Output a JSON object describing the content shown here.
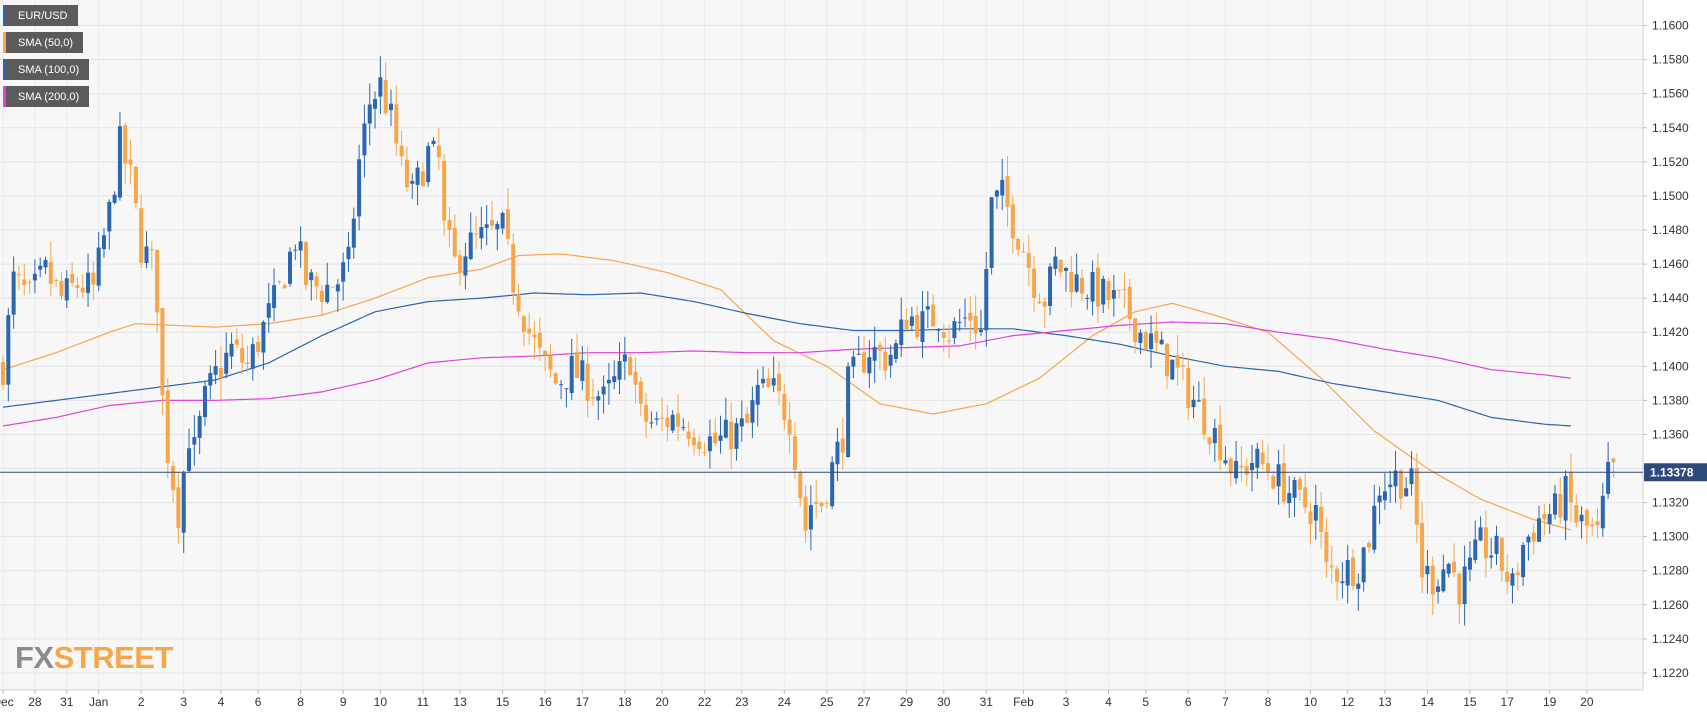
{
  "chart_data": {
    "type": "candlestick",
    "symbol": "EUR/USD",
    "ylim": [
      1.121,
      1.1615
    ],
    "y_ticks": [
      "1.1600",
      "1.1580",
      "1.1560",
      "1.1540",
      "1.1520",
      "1.1500",
      "1.1480",
      "1.1460",
      "1.1440",
      "1.1420",
      "1.1400",
      "1.1380",
      "1.1360",
      "1.1340",
      "1.1320",
      "1.1300",
      "1.1280",
      "1.1260",
      "1.1240",
      "1.1220"
    ],
    "x_ticks": [
      {
        "bar": 0,
        "label": "Dec"
      },
      {
        "bar": 6,
        "label": "28"
      },
      {
        "bar": 12,
        "label": "31"
      },
      {
        "bar": 18,
        "label": "Jan"
      },
      {
        "bar": 26,
        "label": "2"
      },
      {
        "bar": 34,
        "label": "3"
      },
      {
        "bar": 41,
        "label": "4"
      },
      {
        "bar": 48,
        "label": "6"
      },
      {
        "bar": 56,
        "label": "8"
      },
      {
        "bar": 64,
        "label": "9"
      },
      {
        "bar": 71,
        "label": "10"
      },
      {
        "bar": 79,
        "label": "11"
      },
      {
        "bar": 86,
        "label": "13"
      },
      {
        "bar": 94,
        "label": "15"
      },
      {
        "bar": 102,
        "label": "16"
      },
      {
        "bar": 109,
        "label": "17"
      },
      {
        "bar": 117,
        "label": "18"
      },
      {
        "bar": 124,
        "label": "20"
      },
      {
        "bar": 132,
        "label": "22"
      },
      {
        "bar": 139,
        "label": "23"
      },
      {
        "bar": 147,
        "label": "24"
      },
      {
        "bar": 155,
        "label": "25"
      },
      {
        "bar": 162,
        "label": "27"
      },
      {
        "bar": 170,
        "label": "29"
      },
      {
        "bar": 177,
        "label": "30"
      },
      {
        "bar": 185,
        "label": "31"
      },
      {
        "bar": 192,
        "label": "Feb"
      },
      {
        "bar": 200,
        "label": "3"
      },
      {
        "bar": 208,
        "label": "4"
      },
      {
        "bar": 215,
        "label": "5"
      },
      {
        "bar": 223,
        "label": "6"
      },
      {
        "bar": 230,
        "label": "7"
      },
      {
        "bar": 238,
        "label": "8"
      },
      {
        "bar": 246,
        "label": "10"
      },
      {
        "bar": 253,
        "label": "12"
      },
      {
        "bar": 260,
        "label": "13"
      },
      {
        "bar": 268,
        "label": "14"
      },
      {
        "bar": 276,
        "label": "15"
      },
      {
        "bar": 283,
        "label": "17"
      },
      {
        "bar": 291,
        "label": "19"
      },
      {
        "bar": 298,
        "label": "20"
      }
    ],
    "current_price": 1.13378,
    "current_price_label": "1.13378",
    "bar_count": 295,
    "anchors": [
      [
        0,
        1.14
      ],
      [
        2,
        1.145
      ],
      [
        5,
        1.144
      ],
      [
        8,
        1.1455
      ],
      [
        11,
        1.144
      ],
      [
        14,
        1.1448
      ],
      [
        17,
        1.1445
      ],
      [
        20,
        1.149
      ],
      [
        22,
        1.153
      ],
      [
        24,
        1.151
      ],
      [
        26,
        1.147
      ],
      [
        28,
        1.146
      ],
      [
        29,
        1.144
      ],
      [
        30,
        1.138
      ],
      [
        31,
        1.135
      ],
      [
        33,
        1.1315
      ],
      [
        35,
        1.136
      ],
      [
        36,
        1.135
      ],
      [
        38,
        1.138
      ],
      [
        40,
        1.1395
      ],
      [
        43,
        1.141
      ],
      [
        46,
        1.14
      ],
      [
        48,
        1.1415
      ],
      [
        52,
        1.1445
      ],
      [
        55,
        1.1475
      ],
      [
        57,
        1.145
      ],
      [
        60,
        1.1445
      ],
      [
        63,
        1.145
      ],
      [
        65,
        1.146
      ],
      [
        67,
        1.152
      ],
      [
        69,
        1.1555
      ],
      [
        71,
        1.1565
      ],
      [
        73,
        1.1545
      ],
      [
        75,
        1.1515
      ],
      [
        77,
        1.15
      ],
      [
        80,
        1.1525
      ],
      [
        82,
        1.152
      ],
      [
        83,
        1.148
      ],
      [
        85,
        1.146
      ],
      [
        87,
        1.147
      ],
      [
        90,
        1.1475
      ],
      [
        94,
        1.148
      ],
      [
        96,
        1.145
      ],
      [
        99,
        1.142
      ],
      [
        101,
        1.1405
      ],
      [
        104,
        1.139
      ],
      [
        107,
        1.1398
      ],
      [
        110,
        1.139
      ],
      [
        113,
        1.138
      ],
      [
        116,
        1.1395
      ],
      [
        118,
        1.1405
      ],
      [
        120,
        1.137
      ],
      [
        123,
        1.1365
      ],
      [
        126,
        1.137
      ],
      [
        129,
        1.1365
      ],
      [
        132,
        1.1358
      ],
      [
        134,
        1.1355
      ],
      [
        137,
        1.136
      ],
      [
        140,
        1.1365
      ],
      [
        142,
        1.1385
      ],
      [
        145,
        1.1385
      ],
      [
        148,
        1.137
      ],
      [
        151,
        1.1305
      ],
      [
        152,
        1.132
      ],
      [
        154,
        1.132
      ],
      [
        156,
        1.134
      ],
      [
        158,
        1.136
      ],
      [
        159,
        1.139
      ],
      [
        161,
        1.14
      ],
      [
        163,
        1.141
      ],
      [
        166,
        1.1405
      ],
      [
        168,
        1.141
      ],
      [
        170,
        1.143
      ],
      [
        173,
        1.1425
      ],
      [
        176,
        1.143
      ],
      [
        178,
        1.142
      ],
      [
        180,
        1.1425
      ],
      [
        182,
        1.143
      ],
      [
        184,
        1.142
      ],
      [
        186,
        1.1495
      ],
      [
        188,
        1.15
      ],
      [
        190,
        1.1485
      ],
      [
        192,
        1.147
      ],
      [
        194,
        1.145
      ],
      [
        196,
        1.144
      ],
      [
        198,
        1.146
      ],
      [
        200,
        1.1455
      ],
      [
        202,
        1.145
      ],
      [
        205,
        1.1445
      ],
      [
        208,
        1.144
      ],
      [
        211,
        1.1435
      ],
      [
        214,
        1.142
      ],
      [
        217,
        1.141
      ],
      [
        220,
        1.14
      ],
      [
        223,
        1.1385
      ],
      [
        226,
        1.137
      ],
      [
        229,
        1.1355
      ],
      [
        232,
        1.1335
      ],
      [
        235,
        1.1345
      ],
      [
        238,
        1.134
      ],
      [
        241,
        1.133
      ],
      [
        244,
        1.132
      ],
      [
        247,
        1.1315
      ],
      [
        249,
        1.128
      ],
      [
        252,
        1.128
      ],
      [
        255,
        1.1283
      ],
      [
        257,
        1.13
      ],
      [
        259,
        1.133
      ],
      [
        262,
        1.1335
      ],
      [
        265,
        1.133
      ],
      [
        267,
        1.128
      ],
      [
        269,
        1.1275
      ],
      [
        272,
        1.1285
      ],
      [
        274,
        1.127
      ],
      [
        276,
        1.128
      ],
      [
        278,
        1.1295
      ],
      [
        281,
        1.129
      ],
      [
        284,
        1.127
      ],
      [
        286,
        1.1295
      ],
      [
        289,
        1.131
      ],
      [
        292,
        1.1315
      ],
      [
        294,
        1.1325
      ],
      [
        296,
        1.131
      ],
      [
        298,
        1.1305
      ],
      [
        300,
        1.13
      ],
      [
        302,
        1.1335
      ],
      [
        303,
        1.1338
      ]
    ],
    "series": [
      {
        "name": "SMA (50,0)",
        "color": "#f7a64a",
        "values": [
          [
            0,
            1.1398
          ],
          [
            10,
            1.1408
          ],
          [
            20,
            1.142
          ],
          [
            25,
            1.1425
          ],
          [
            40,
            1.1423
          ],
          [
            50,
            1.1425
          ],
          [
            60,
            1.143
          ],
          [
            70,
            1.144
          ],
          [
            80,
            1.1452
          ],
          [
            90,
            1.1457
          ],
          [
            97,
            1.1465
          ],
          [
            105,
            1.1466
          ],
          [
            115,
            1.1462
          ],
          [
            125,
            1.1455
          ],
          [
            135,
            1.1445
          ],
          [
            145,
            1.1415
          ],
          [
            155,
            1.14
          ],
          [
            165,
            1.1378
          ],
          [
            175,
            1.1372
          ],
          [
            185,
            1.1378
          ],
          [
            195,
            1.1393
          ],
          [
            205,
            1.1418
          ],
          [
            213,
            1.1432
          ],
          [
            220,
            1.1437
          ],
          [
            228,
            1.143
          ],
          [
            238,
            1.142
          ],
          [
            248,
            1.1393
          ],
          [
            258,
            1.1362
          ],
          [
            268,
            1.134
          ],
          [
            278,
            1.1322
          ],
          [
            288,
            1.131
          ],
          [
            295,
            1.1304
          ]
        ]
      },
      {
        "name": "SMA (100,0)",
        "color": "#2b66b0",
        "values": [
          [
            0,
            1.1376
          ],
          [
            10,
            1.138
          ],
          [
            20,
            1.1384
          ],
          [
            30,
            1.1388
          ],
          [
            40,
            1.1392
          ],
          [
            50,
            1.1402
          ],
          [
            60,
            1.1418
          ],
          [
            70,
            1.1432
          ],
          [
            80,
            1.1438
          ],
          [
            90,
            1.144
          ],
          [
            100,
            1.1443
          ],
          [
            110,
            1.1442
          ],
          [
            120,
            1.1443
          ],
          [
            130,
            1.1438
          ],
          [
            140,
            1.1431
          ],
          [
            150,
            1.1425
          ],
          [
            160,
            1.1421
          ],
          [
            170,
            1.1421
          ],
          [
            180,
            1.1422
          ],
          [
            190,
            1.1422
          ],
          [
            200,
            1.1418
          ],
          [
            210,
            1.1413
          ],
          [
            220,
            1.1406
          ],
          [
            230,
            1.14
          ],
          [
            240,
            1.1397
          ],
          [
            250,
            1.139
          ],
          [
            260,
            1.1385
          ],
          [
            270,
            1.138
          ],
          [
            280,
            1.137
          ],
          [
            290,
            1.1366
          ],
          [
            295,
            1.1365
          ]
        ]
      },
      {
        "name": "SMA (200,0)",
        "color": "#e040e0",
        "values": [
          [
            0,
            1.1365
          ],
          [
            10,
            1.137
          ],
          [
            20,
            1.1377
          ],
          [
            30,
            1.138
          ],
          [
            40,
            1.138
          ],
          [
            50,
            1.1381
          ],
          [
            60,
            1.1385
          ],
          [
            70,
            1.1392
          ],
          [
            80,
            1.1402
          ],
          [
            90,
            1.1405
          ],
          [
            100,
            1.1406
          ],
          [
            110,
            1.1408
          ],
          [
            120,
            1.1408
          ],
          [
            130,
            1.1409
          ],
          [
            140,
            1.1408
          ],
          [
            150,
            1.1408
          ],
          [
            160,
            1.141
          ],
          [
            170,
            1.1411
          ],
          [
            180,
            1.1412
          ],
          [
            190,
            1.1418
          ],
          [
            200,
            1.1421
          ],
          [
            210,
            1.1424
          ],
          [
            220,
            1.1426
          ],
          [
            230,
            1.1425
          ],
          [
            240,
            1.142
          ],
          [
            250,
            1.1416
          ],
          [
            260,
            1.141
          ],
          [
            270,
            1.1405
          ],
          [
            280,
            1.1398
          ],
          [
            290,
            1.1395
          ],
          [
            295,
            1.1393
          ]
        ]
      }
    ],
    "up_color": "#2b66b0",
    "down_color": "#f7a64a",
    "price_line_color": "#2e4a7a"
  },
  "legend": [
    {
      "label": "EUR/USD",
      "color": "#2b66b0"
    },
    {
      "label": "SMA (50,0)",
      "color": "#f7a64a"
    },
    {
      "label": "SMA (100,0)",
      "color": "#2b66b0"
    },
    {
      "label": "SMA (200,0)",
      "color": "#e040e0"
    }
  ],
  "watermark": {
    "part1": "FX",
    "part2": "STREET"
  }
}
